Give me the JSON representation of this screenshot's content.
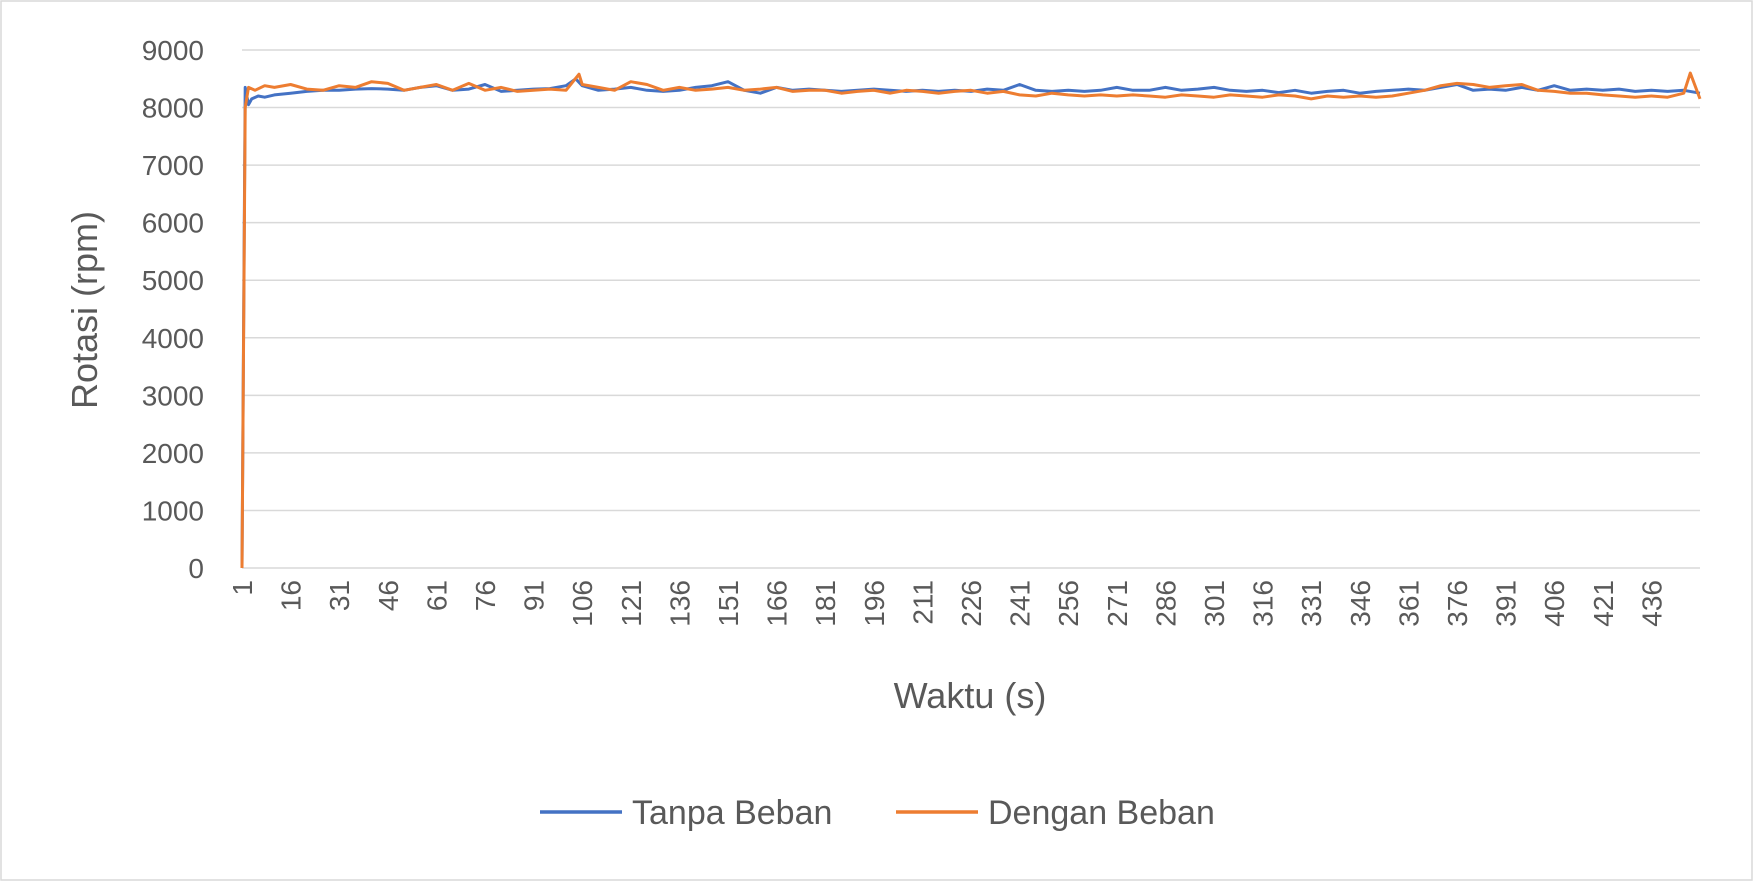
{
  "chart_data": {
    "type": "line",
    "title": "",
    "xlabel": "Waktu (s)",
    "ylabel": "Rotasi (rpm)",
    "ylim": [
      0,
      9000
    ],
    "yticks": [
      "0",
      "1000",
      "2000",
      "3000",
      "4000",
      "5000",
      "6000",
      "7000",
      "8000",
      "9000"
    ],
    "xlim": [
      1,
      451
    ],
    "xtick_labels": [
      "1",
      "16",
      "31",
      "46",
      "61",
      "76",
      "91",
      "106",
      "121",
      "136",
      "151",
      "166",
      "181",
      "196",
      "211",
      "226",
      "241",
      "256",
      "271",
      "286",
      "301",
      "316",
      "331",
      "346",
      "361",
      "376",
      "391",
      "406",
      "421",
      "436"
    ],
    "grid": true,
    "legend_position": "bottom",
    "series": [
      {
        "name": "Tanpa Beban",
        "color": "#4472C4",
        "x": [
          1,
          2,
          3,
          4,
          6,
          8,
          11,
          16,
          21,
          26,
          31,
          36,
          41,
          46,
          51,
          56,
          61,
          66,
          71,
          76,
          81,
          86,
          91,
          96,
          101,
          104,
          106,
          111,
          116,
          121,
          126,
          131,
          136,
          141,
          146,
          151,
          156,
          161,
          166,
          171,
          176,
          181,
          186,
          191,
          196,
          201,
          206,
          211,
          216,
          221,
          226,
          231,
          236,
          241,
          246,
          251,
          256,
          261,
          266,
          271,
          276,
          281,
          286,
          291,
          296,
          301,
          306,
          311,
          316,
          321,
          326,
          331,
          336,
          341,
          346,
          351,
          356,
          361,
          366,
          371,
          376,
          381,
          386,
          391,
          396,
          401,
          406,
          411,
          416,
          421,
          426,
          431,
          436,
          441,
          446,
          451
        ],
        "y": [
          0,
          8350,
          8050,
          8150,
          8200,
          8180,
          8220,
          8250,
          8280,
          8300,
          8300,
          8320,
          8330,
          8320,
          8300,
          8350,
          8380,
          8300,
          8320,
          8400,
          8280,
          8300,
          8320,
          8330,
          8380,
          8500,
          8380,
          8300,
          8320,
          8350,
          8300,
          8280,
          8300,
          8350,
          8380,
          8450,
          8300,
          8250,
          8350,
          8300,
          8320,
          8300,
          8280,
          8300,
          8320,
          8300,
          8280,
          8300,
          8280,
          8300,
          8280,
          8320,
          8300,
          8400,
          8300,
          8280,
          8300,
          8280,
          8300,
          8350,
          8300,
          8300,
          8350,
          8300,
          8320,
          8350,
          8300,
          8280,
          8300,
          8260,
          8300,
          8250,
          8280,
          8300,
          8250,
          8280,
          8300,
          8320,
          8300,
          8350,
          8400,
          8300,
          8320,
          8300,
          8350,
          8300,
          8380,
          8300,
          8320,
          8300,
          8320,
          8280,
          8300,
          8280,
          8300,
          8250
        ]
      },
      {
        "name": "Dengan Beban",
        "color": "#ED7D31",
        "x": [
          1,
          2,
          3,
          5,
          8,
          11,
          16,
          21,
          26,
          31,
          36,
          41,
          46,
          51,
          56,
          61,
          66,
          71,
          76,
          81,
          86,
          91,
          96,
          101,
          105,
          106,
          111,
          116,
          121,
          126,
          131,
          136,
          141,
          146,
          151,
          156,
          161,
          166,
          171,
          176,
          181,
          186,
          191,
          196,
          201,
          206,
          211,
          216,
          221,
          226,
          231,
          236,
          241,
          246,
          251,
          256,
          261,
          266,
          271,
          276,
          281,
          286,
          291,
          296,
          301,
          306,
          311,
          316,
          321,
          326,
          331,
          336,
          341,
          346,
          351,
          356,
          361,
          366,
          371,
          376,
          381,
          386,
          391,
          396,
          401,
          406,
          411,
          416,
          421,
          426,
          431,
          436,
          441,
          446,
          448,
          451
        ],
        "y": [
          0,
          8000,
          8350,
          8300,
          8380,
          8350,
          8400,
          8320,
          8300,
          8380,
          8350,
          8450,
          8420,
          8300,
          8350,
          8400,
          8300,
          8420,
          8300,
          8350,
          8280,
          8300,
          8320,
          8300,
          8580,
          8400,
          8350,
          8300,
          8450,
          8400,
          8300,
          8350,
          8300,
          8320,
          8350,
          8300,
          8320,
          8350,
          8280,
          8300,
          8300,
          8250,
          8280,
          8300,
          8250,
          8300,
          8280,
          8250,
          8280,
          8300,
          8250,
          8280,
          8220,
          8200,
          8250,
          8220,
          8200,
          8220,
          8200,
          8220,
          8200,
          8180,
          8220,
          8200,
          8180,
          8220,
          8200,
          8180,
          8220,
          8200,
          8150,
          8200,
          8180,
          8200,
          8180,
          8200,
          8250,
          8300,
          8380,
          8420,
          8400,
          8350,
          8380,
          8400,
          8300,
          8280,
          8250,
          8250,
          8220,
          8200,
          8180,
          8200,
          8180,
          8250,
          8600,
          8150
        ]
      }
    ]
  }
}
